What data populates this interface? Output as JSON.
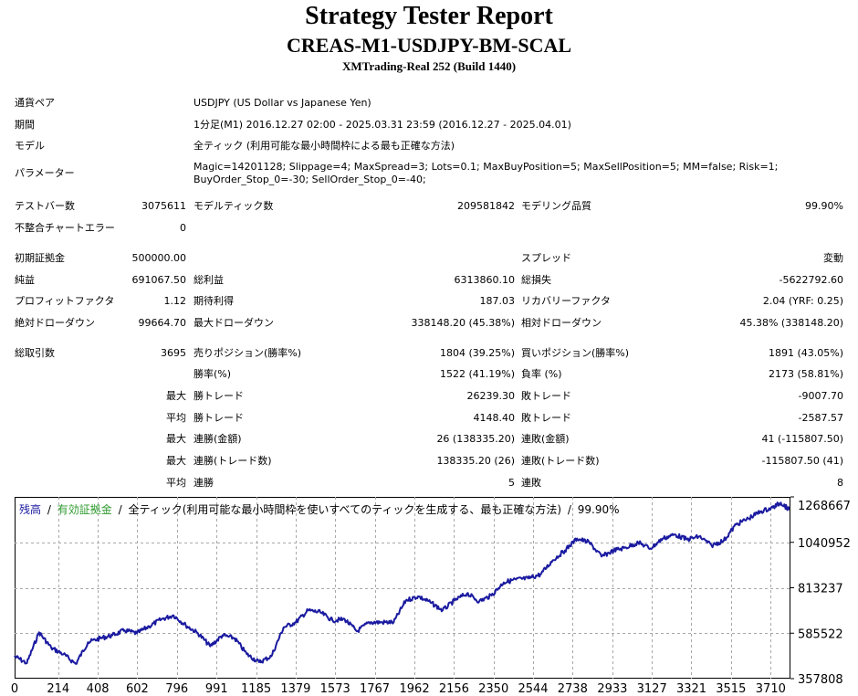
{
  "header": {
    "title": "Strategy Tester Report",
    "subtitle": "CREAS-M1-USDJPY-BM-SCAL",
    "server": "XMTrading-Real 252 (Build 1440)"
  },
  "info": {
    "pair_label": "通貨ペア",
    "pair_value": "USDJPY (US Dollar vs Japanese Yen)",
    "period_label": "期間",
    "period_value": "1分足(M1) 2016.12.27 02:00 - 2025.03.31 23:59 (2016.12.27 - 2025.04.01)",
    "model_label": "モデル",
    "model_value": "全ティック (利用可能な最小時間枠による最も正確な方法)",
    "params_label": "パラメーター",
    "params_line1": "Magic=14201128; Slippage=4; MaxSpread=3; Lots=0.1; MaxBuyPosition=5; MaxSellPosition=5; MM=false; Risk=1;",
    "params_line2": "BuyOrder_Stop_0=-30; SellOrder_Stop_0=-40;"
  },
  "stats": {
    "bars_label": "テストバー数",
    "bars_value": "3075611",
    "ticks_label": "モデルティック数",
    "ticks_value": "209581842",
    "quality_label": "モデリング品質",
    "quality_value": "99.90%",
    "mismatch_label": "不整合チャートエラー",
    "mismatch_value": "0",
    "deposit_label": "初期証拠金",
    "deposit_value": "500000.00",
    "spread_label": "スプレッド",
    "spread_value": "変動",
    "net_label": "純益",
    "net_value": "691067.50",
    "gross_profit_label": "総利益",
    "gross_profit_value": "6313860.10",
    "gross_loss_label": "総損失",
    "gross_loss_value": "-5622792.60",
    "pf_label": "プロフィットファクタ",
    "pf_value": "1.12",
    "payoff_label": "期待利得",
    "payoff_value": "187.03",
    "recovery_label": "リカバリーファクタ",
    "recovery_value": "2.04 (YRF: 0.25)",
    "abs_dd_label": "絶対ドローダウン",
    "abs_dd_value": "99664.70",
    "max_dd_label": "最大ドローダウン",
    "max_dd_value": "338148.20 (45.38%)",
    "rel_dd_label": "相対ドローダウン",
    "rel_dd_value": "45.38% (338148.20)",
    "trades_label": "総取引数",
    "trades_value": "3695",
    "short_label": "売りポジション(勝率%)",
    "short_value": "1804 (39.25%)",
    "long_label": "買いポジション(勝率%)",
    "long_value": "1891 (43.05%)",
    "winrate_label": "勝率(%)",
    "winrate_value": "1522 (41.19%)",
    "lossrate_label": "負率 (%)",
    "lossrate_value": "2173 (58.81%)",
    "max_word": "最大",
    "avg_word": "平均",
    "win_trade_label": "勝トレード",
    "lose_trade_label": "敗トレード",
    "max_win_value": "26239.30",
    "max_loss_value": "-9007.70",
    "avg_win_value": "4148.40",
    "avg_loss_value": "-2587.57",
    "cons_win_amt_label": "連勝(金額)",
    "cons_win_amt_value": "26 (138335.20)",
    "cons_loss_amt_label": "連敗(金額)",
    "cons_loss_amt_value": "41 (-115807.50)",
    "cons_win_cnt_label": "連勝(トレード数)",
    "cons_win_cnt_value": "138335.20 (26)",
    "cons_loss_cnt_label": "連敗(トレード数)",
    "cons_loss_cnt_value": "-115807.50 (41)",
    "avg_cons_win_label": "連勝",
    "avg_cons_win_value": "5",
    "avg_cons_loss_label": "連敗",
    "avg_cons_loss_value": "8"
  },
  "colors": {
    "balance": "#1a1aa0",
    "equity": "#2e9b2e",
    "grid": "#a8a8a8"
  },
  "chart_data": {
    "type": "line",
    "legend_parts": [
      "残高",
      "有効証拠金",
      "全ティック(利用可能な最小時間枠を使いすべてのティックを生成する、最も正確な方法)",
      "99.90%"
    ],
    "legend_sep": "/",
    "x_ticks": [
      "0",
      "214",
      "408",
      "602",
      "796",
      "991",
      "1185",
      "1379",
      "1573",
      "1767",
      "1962",
      "2156",
      "2350",
      "2544",
      "2738",
      "2933",
      "3127",
      "3321",
      "3515",
      "3710"
    ],
    "y_ticks": [
      "1268667",
      "1040952",
      "813237",
      "585522",
      "357808"
    ],
    "xlim": [
      0,
      3807
    ],
    "ylim": [
      357808,
      1268667
    ],
    "series": [
      {
        "name": "残高",
        "x": [
          0,
          60,
          120,
          180,
          240,
          300,
          360,
          420,
          480,
          540,
          600,
          660,
          720,
          780,
          840,
          900,
          960,
          1020,
          1080,
          1140,
          1200,
          1260,
          1320,
          1380,
          1440,
          1500,
          1560,
          1620,
          1680,
          1740,
          1800,
          1860,
          1920,
          1980,
          2040,
          2100,
          2160,
          2220,
          2280,
          2340,
          2400,
          2460,
          2520,
          2580,
          2640,
          2700,
          2760,
          2820,
          2880,
          2940,
          3000,
          3060,
          3120,
          3180,
          3240,
          3300,
          3360,
          3420,
          3480,
          3540,
          3600,
          3660,
          3720,
          3760,
          3800
        ],
        "y": [
          470000,
          435000,
          590000,
          512000,
          480000,
          432000,
          540000,
          560000,
          575000,
          600000,
          585000,
          620000,
          655000,
          675000,
          625000,
          585000,
          520000,
          575000,
          560000,
          480000,
          440000,
          470000,
          615000,
          640000,
          700000,
          690000,
          650000,
          655000,
          595000,
          640000,
          640000,
          640000,
          750000,
          770000,
          740000,
          700000,
          750000,
          785000,
          745000,
          775000,
          840000,
          855000,
          860000,
          880000,
          950000,
          1000000,
          1060000,
          1040000,
          970000,
          1000000,
          1015000,
          1040000,
          1010000,
          1060000,
          1080000,
          1055000,
          1070000,
          1025000,
          1050000,
          1130000,
          1160000,
          1195000,
          1215000,
          1240000,
          1205000
        ]
      }
    ]
  }
}
